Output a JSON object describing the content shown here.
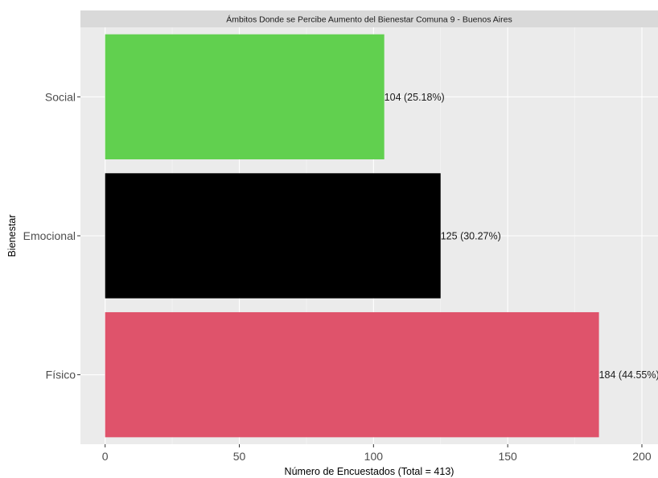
{
  "chart_data": {
    "type": "bar",
    "orientation": "horizontal",
    "title": "Ámbitos Donde se Percibe Aumento del Bienestar Comuna 9 - Buenos Aires",
    "xlabel": "Número de Encuestados (Total = 413)",
    "ylabel": "Bienestar",
    "categories": [
      "Social",
      "Emocional",
      "Físico"
    ],
    "values": [
      104,
      125,
      184
    ],
    "data_labels": [
      "104 (25.18%)",
      "125 (30.27%)",
      "184 (44.55%)"
    ],
    "colors": [
      "#61d04f",
      "#000000",
      "#df536b"
    ],
    "xlim": [
      -9.2,
      206
    ],
    "x_ticks": [
      0,
      50,
      100,
      150,
      200
    ],
    "x_tick_labels": [
      "0",
      "50",
      "100",
      "150",
      "200"
    ],
    "grid": true,
    "panel_background": "#ebebeb",
    "strip_background": "#d9d9d9"
  }
}
